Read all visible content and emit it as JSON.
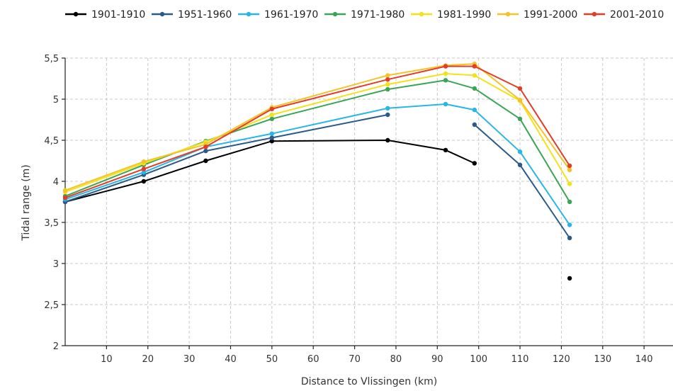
{
  "chart_data": {
    "type": "line",
    "xlabel": "Distance to Vlissingen (km)",
    "ylabel": "Tidal range (m)",
    "xlim": [
      0,
      147
    ],
    "ylim": [
      2,
      5.5
    ],
    "xticks": [
      10,
      20,
      30,
      40,
      50,
      60,
      70,
      80,
      90,
      100,
      110,
      120,
      130,
      140
    ],
    "xtick_labels": [
      "10",
      "20",
      "30",
      "40",
      "50",
      "60",
      "70",
      "80",
      "90",
      "100",
      "110",
      "120",
      "130",
      "140"
    ],
    "yticks": [
      2,
      2.5,
      3,
      3.5,
      4,
      4.5,
      5,
      5.5
    ],
    "ytick_labels": [
      "2",
      "2,5",
      "3",
      "3,5",
      "4",
      "4,5",
      "5",
      "5,5"
    ],
    "grid": true,
    "legend_position": "top",
    "series": [
      {
        "name": "1901-1910",
        "color": "#000000",
        "segments": [
          [
            [
              0,
              3.75
            ],
            [
              19,
              4.0
            ],
            [
              34,
              4.25
            ],
            [
              50,
              4.49
            ],
            [
              78,
              4.5
            ],
            [
              92,
              4.38
            ],
            [
              99,
              4.22
            ]
          ],
          [
            [
              122,
              2.82
            ]
          ]
        ]
      },
      {
        "name": "1951-1960",
        "color": "#2a5a8a",
        "segments": [
          [
            [
              0,
              3.75
            ],
            [
              19,
              4.08
            ],
            [
              34,
              4.37
            ],
            [
              50,
              4.53
            ],
            [
              78,
              4.81
            ]
          ],
          [
            [
              99,
              4.69
            ],
            [
              110,
              4.2
            ],
            [
              122,
              3.31
            ]
          ]
        ]
      },
      {
        "name": "1961-1970",
        "color": "#29b6e6",
        "segments": [
          [
            [
              0,
              3.78
            ],
            [
              19,
              4.11
            ],
            [
              34,
              4.42
            ],
            [
              50,
              4.58
            ],
            [
              78,
              4.89
            ],
            [
              92,
              4.94
            ],
            [
              99,
              4.87
            ],
            [
              110,
              4.36
            ],
            [
              122,
              3.47
            ]
          ]
        ]
      },
      {
        "name": "1971-1980",
        "color": "#3aa556",
        "segments": [
          [
            [
              0,
              3.82
            ],
            [
              19,
              4.2
            ],
            [
              34,
              4.49
            ],
            [
              50,
              4.76
            ],
            [
              78,
              5.12
            ],
            [
              92,
              5.23
            ],
            [
              99,
              5.13
            ],
            [
              110,
              4.76
            ],
            [
              122,
              3.75
            ]
          ]
        ]
      },
      {
        "name": "1981-1990",
        "color": "#f2e21a",
        "segments": [
          [
            [
              0,
              3.87
            ],
            [
              19,
              4.22
            ],
            [
              34,
              4.48
            ],
            [
              50,
              4.81
            ],
            [
              78,
              5.18
            ],
            [
              92,
              5.31
            ],
            [
              99,
              5.29
            ],
            [
              110,
              4.98
            ],
            [
              122,
              3.97
            ]
          ]
        ]
      },
      {
        "name": "1991-2000",
        "color": "#f5c327",
        "segments": [
          [
            [
              0,
              3.89
            ],
            [
              19,
              4.24
            ],
            [
              34,
              4.45
            ],
            [
              50,
              4.9
            ],
            [
              78,
              5.29
            ],
            [
              92,
              5.41
            ],
            [
              99,
              5.43
            ],
            [
              110,
              4.99
            ],
            [
              122,
              4.14
            ]
          ]
        ]
      },
      {
        "name": "2001-2010",
        "color": "#e23d28",
        "segments": [
          [
            [
              0,
              3.8
            ],
            [
              19,
              4.15
            ],
            [
              34,
              4.42
            ],
            [
              50,
              4.88
            ],
            [
              78,
              5.24
            ],
            [
              92,
              5.4
            ],
            [
              99,
              5.4
            ],
            [
              110,
              5.13
            ],
            [
              122,
              4.19
            ]
          ]
        ]
      }
    ]
  }
}
